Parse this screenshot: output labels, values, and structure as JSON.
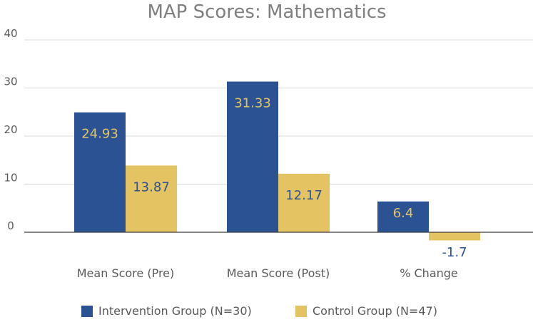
{
  "chart_data": {
    "type": "bar",
    "title": "MAP Scores: Mathematics",
    "categories": [
      "Mean Score (Pre)",
      "Mean Score (Post)",
      "% Change"
    ],
    "series": [
      {
        "name": "Intervention Group (N=30)",
        "values": [
          24.93,
          31.33,
          6.4
        ],
        "labels": [
          "24.93",
          "31.33",
          "6.4"
        ],
        "color": "#2b5394",
        "label_color": "#e4c462"
      },
      {
        "name": "Control Group (N=47)",
        "values": [
          13.87,
          12.17,
          -1.7
        ],
        "labels": [
          "13.87",
          "12.17",
          "-1.7"
        ],
        "color": "#e4c462",
        "label_color": "#2b5394"
      }
    ],
    "ylim": [
      -2,
      40
    ],
    "yticks": [
      0,
      10,
      20,
      30,
      40
    ],
    "ytick_labels": [
      "0",
      "10",
      "20",
      "30",
      "40"
    ],
    "grid": true,
    "legend": "bottom"
  }
}
